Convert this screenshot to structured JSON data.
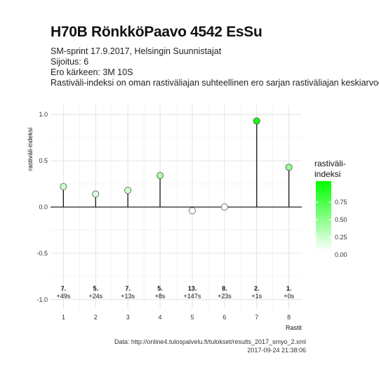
{
  "header": {
    "title": "H70B RönkköPaavo 4542 EsSu",
    "line1": "SM-sprint 17.9.2017, Helsingin Suunnistajat",
    "line2": "Sijoitus: 6",
    "line3": "Ero kärkeen: 3M 10S",
    "line4": "Rastiväli-indeksi on oman rastiväliajan suhteellinen ero sarjan rastiväliajan keskiarvoon"
  },
  "footer": {
    "source": "Data: http://online4.tulospalvelu.fi/tulokset/results_2017_smyo_2.xml",
    "timestamp": "2017-09-24 21:38:06"
  },
  "chart_data": {
    "type": "scatter",
    "style": "lollipop",
    "title": "",
    "xlabel": "Rastit",
    "ylabel": "rastiväli-indeksi",
    "ylim": [
      -1.1,
      1.1
    ],
    "xlim": [
      0.6,
      8.4
    ],
    "yticks": [
      1.0,
      0.5,
      0.0,
      -0.5,
      -1.0
    ],
    "ytick_labels": [
      "1.0",
      "0.5",
      "0.0",
      "-0.5",
      "-1.0"
    ],
    "xticks": [
      1,
      2,
      3,
      4,
      5,
      6,
      7,
      8
    ],
    "grid": true,
    "x": [
      1,
      2,
      3,
      4,
      5,
      6,
      7,
      8
    ],
    "values": [
      0.22,
      0.14,
      0.18,
      0.34,
      -0.04,
      0.0,
      0.93,
      0.43
    ],
    "rank_labels": [
      "7.",
      "5.",
      "7.",
      "5.",
      "13.",
      "8.",
      "2.",
      "1."
    ],
    "diff_labels": [
      "+49s",
      "+24s",
      "+13s",
      "+8s",
      "+147s",
      "+23s",
      "+1s",
      "+0s"
    ],
    "legend": {
      "title_line1": "rastiväli-",
      "title_line2": "indeksi",
      "placement": "right",
      "range": [
        0,
        1.0
      ],
      "ticks": [
        0.75,
        0.5,
        0.25,
        0.0
      ],
      "tick_labels": [
        "0.75",
        "0.50",
        "0.25",
        "0.00"
      ],
      "color_low": "#ffffff",
      "color_high": "#00ff00"
    }
  }
}
